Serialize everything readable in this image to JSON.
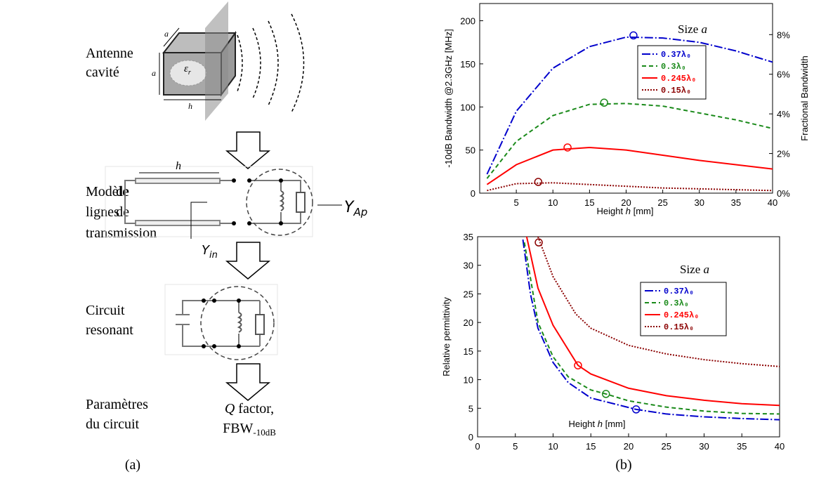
{
  "diagram": {
    "steps": {
      "antenna": [
        "Antenne",
        "cavité"
      ],
      "model": [
        "Modèle",
        "de",
        "lignes",
        "de",
        "transmission"
      ],
      "circuit": [
        "Circuit",
        "resonant"
      ],
      "params": [
        "Paramètres",
        "du circuit"
      ]
    },
    "cube_labels": {
      "a_top": "a",
      "a_side": "a",
      "h": "h",
      "eps": {
        "main": "ε",
        "sub": "r"
      }
    },
    "line_length": "h",
    "y_in": {
      "main": "Y",
      "sub": "in"
    },
    "y_ap": {
      "main": "Y",
      "sub": "Ap"
    },
    "output": {
      "q": "Q",
      "q_rest": " factor,",
      "fbw": {
        "main": "FBW",
        "sub": "-10dB"
      }
    },
    "caption": "(a)"
  },
  "caption_b": "(b)",
  "chart_data": [
    {
      "type": "line",
      "y_label": "-10dB Bandwidth @2.3GHz [MHz]",
      "y2_label": "Fractional Bandwidth",
      "x_label": [
        "Height ",
        "h",
        " [mm]"
      ],
      "legend_title": [
        "Size ",
        "a"
      ],
      "x": [
        1,
        5,
        10,
        15,
        20,
        25,
        30,
        35,
        40
      ],
      "xlim": [
        0,
        40
      ],
      "xticks": [
        5,
        10,
        15,
        20,
        25,
        30,
        35,
        40
      ],
      "ylim": [
        0,
        220
      ],
      "yticks": [
        0,
        50,
        100,
        150,
        200
      ],
      "y2lim": [
        0,
        9.57
      ],
      "y2ticks": [
        {
          "value": 0,
          "label": "0%"
        },
        {
          "value": 2,
          "label": "2%"
        },
        {
          "value": 4,
          "label": "4%"
        },
        {
          "value": 6,
          "label": "6%"
        },
        {
          "value": 8,
          "label": "8%"
        }
      ],
      "series": [
        {
          "name": "0.37λ₀",
          "color": "#0000cc",
          "dash": "dashdot",
          "values": [
            22,
            95,
            145,
            170,
            181,
            180,
            175,
            165,
            152
          ],
          "marker": {
            "x": 21,
            "y": 183
          }
        },
        {
          "name": "0.3λ₀",
          "color": "#1a8a1a",
          "dash": "dashed",
          "values": [
            17,
            60,
            90,
            103,
            104,
            101,
            93,
            85,
            75
          ],
          "marker": {
            "x": 17,
            "y": 105
          }
        },
        {
          "name": "0.245λ₀",
          "color": "#ff0000",
          "dash": "solid",
          "values": [
            10,
            33,
            50,
            53,
            50,
            44,
            38,
            33,
            28
          ],
          "marker": {
            "x": 12,
            "y": 53
          }
        },
        {
          "name": "0.15λ₀",
          "color": "#8b0000",
          "dash": "dotted",
          "values": [
            3,
            11,
            12,
            10,
            8,
            6,
            5,
            4,
            3
          ],
          "marker": {
            "x": 8,
            "y": 13
          }
        }
      ]
    },
    {
      "type": "line",
      "y_label": "Relative permittivity",
      "x_label": [
        "Height ",
        "h",
        " [mm]"
      ],
      "legend_title": [
        "Size ",
        "a"
      ],
      "xlim": [
        0,
        40
      ],
      "xticks": [
        0,
        5,
        10,
        15,
        20,
        25,
        30,
        35,
        40
      ],
      "ylim": [
        0,
        35
      ],
      "yticks": [
        0,
        5,
        10,
        15,
        20,
        25,
        30,
        35
      ],
      "series": [
        {
          "name": "0.37λ₀",
          "color": "#0000cc",
          "dash": "dashdot",
          "x": [
            6,
            7,
            8,
            10,
            12,
            15,
            21,
            25,
            30,
            35,
            40
          ],
          "values": [
            34.5,
            25,
            19,
            13,
            9.5,
            6.8,
            4.8,
            4,
            3.5,
            3.2,
            3
          ],
          "marker": {
            "x": 21,
            "y": 4.8
          }
        },
        {
          "name": "0.3λ₀",
          "color": "#1a8a1a",
          "dash": "dashed",
          "x": [
            6.2,
            8,
            10,
            12,
            15,
            17,
            20,
            25,
            30,
            35,
            40
          ],
          "values": [
            34,
            20,
            14,
            10.5,
            8.2,
            7.5,
            6.3,
            5.2,
            4.5,
            4.1,
            4
          ],
          "marker": {
            "x": 17,
            "y": 7.5
          }
        },
        {
          "name": "0.245λ₀",
          "color": "#ff0000",
          "dash": "solid",
          "x": [
            6.5,
            8,
            10,
            13.3,
            15,
            20,
            25,
            30,
            35,
            40
          ],
          "values": [
            35,
            26,
            19.5,
            12.5,
            11,
            8.5,
            7.2,
            6.4,
            5.8,
            5.5
          ],
          "marker": {
            "x": 13.3,
            "y": 12.5
          }
        },
        {
          "name": "0.15λ₀",
          "color": "#8b0000",
          "dash": "dotted",
          "x": [
            8,
            10,
            13,
            15,
            20,
            25,
            30,
            35,
            40
          ],
          "values": [
            35,
            28,
            21.5,
            19,
            16,
            14.5,
            13.5,
            12.8,
            12.3
          ],
          "marker": {
            "x": 8.1,
            "y": 34
          }
        }
      ]
    }
  ]
}
